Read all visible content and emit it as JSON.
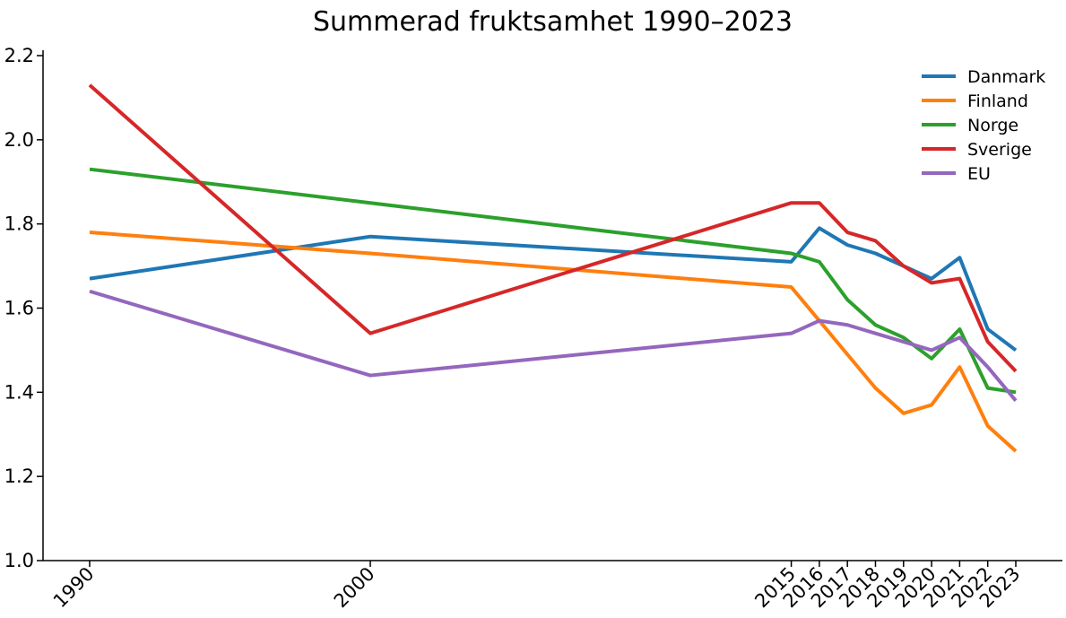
{
  "chart_data": {
    "type": "line",
    "title": "Summerad fruktsamhet 1990–2023",
    "xlabel": "",
    "ylabel": "",
    "x": [
      1990,
      2000,
      2015,
      2016,
      2017,
      2018,
      2019,
      2020,
      2021,
      2022,
      2023
    ],
    "xtick_labels": [
      "1990",
      "2000",
      "2015",
      "2016",
      "2017",
      "2018",
      "2019",
      "2020",
      "2021",
      "2022",
      "2023"
    ],
    "ylim": [
      1.0,
      2.2
    ],
    "xlim": [
      1988.3,
      2024.7
    ],
    "yticks": [
      1.0,
      1.2,
      1.4,
      1.6,
      1.8,
      2.0,
      2.2
    ],
    "ytick_labels": [
      "1.0",
      "1.2",
      "1.4",
      "1.6",
      "1.8",
      "2.0",
      "2.2"
    ],
    "grid": false,
    "legend_position": "upper right",
    "legend_frame": false,
    "spines": [
      "left",
      "bottom"
    ],
    "series": [
      {
        "name": "Danmark",
        "color": "#1f77b4",
        "values": [
          1.67,
          1.77,
          1.71,
          1.79,
          1.75,
          1.73,
          1.7,
          1.67,
          1.72,
          1.55,
          1.5
        ]
      },
      {
        "name": "Finland",
        "color": "#ff7f0e",
        "values": [
          1.78,
          1.73,
          1.65,
          1.57,
          1.49,
          1.41,
          1.35,
          1.37,
          1.46,
          1.32,
          1.26
        ]
      },
      {
        "name": "Norge",
        "color": "#2ca02c",
        "values": [
          1.93,
          1.85,
          1.73,
          1.71,
          1.62,
          1.56,
          1.53,
          1.48,
          1.55,
          1.41,
          1.4
        ]
      },
      {
        "name": "Sverige",
        "color": "#d62728",
        "values": [
          2.13,
          1.54,
          1.85,
          1.85,
          1.78,
          1.76,
          1.7,
          1.66,
          1.67,
          1.52,
          1.45
        ]
      },
      {
        "name": "EU",
        "color": "#9467bd",
        "values": [
          1.64,
          1.44,
          1.54,
          1.57,
          1.56,
          1.54,
          1.52,
          1.5,
          1.53,
          1.46,
          1.38
        ]
      }
    ]
  }
}
